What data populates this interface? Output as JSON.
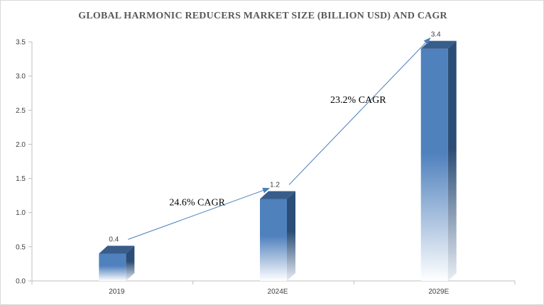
{
  "chart_data": {
    "type": "bar",
    "title": "GLOBAL HARMONIC REDUCERS MARKET SIZE (BILLION USD) AND CAGR",
    "categories": [
      "2019",
      "2024E",
      "2029E"
    ],
    "values": [
      0.4,
      1.2,
      3.4
    ],
    "data_labels": [
      "0.4",
      "1.2",
      "3.4"
    ],
    "ylim": [
      0,
      3.5
    ],
    "yticks": [
      "0.0",
      "0.5",
      "1.0",
      "1.5",
      "2.0",
      "2.5",
      "3.0",
      "3.5"
    ],
    "xlabel": "",
    "ylabel": "",
    "grid": false,
    "bar_style": "3d-gradient",
    "colors": {
      "bar": "#4f81bd",
      "bar_side": "#2c4d75",
      "bar_top": "#385d8a",
      "arrow": "#4a7ebb",
      "axis": "#bfbfbf"
    },
    "annotations": [
      {
        "text": "24.6% CAGR",
        "from": "2019",
        "to": "2024E"
      },
      {
        "text": "23.2% CAGR",
        "from": "2024E",
        "to": "2029E"
      }
    ]
  }
}
